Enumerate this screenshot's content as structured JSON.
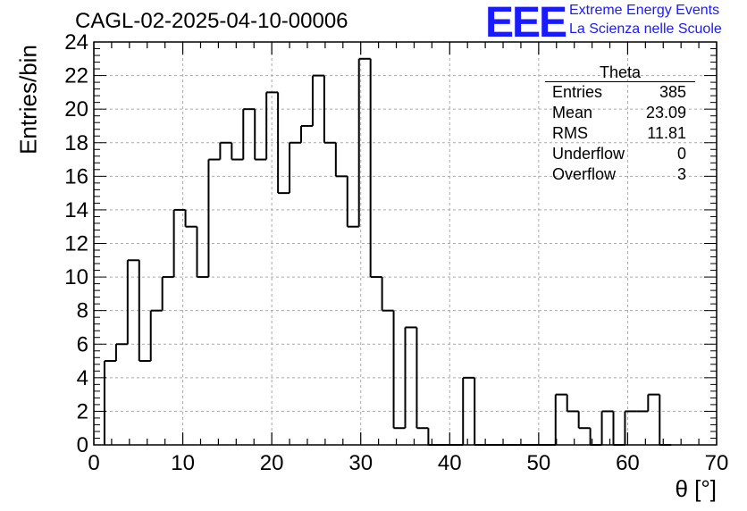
{
  "title": "CAGL-02-2025-04-10-00006",
  "logo": {
    "mark": "EEE",
    "line1": "Extreme Energy Events",
    "line2": "La Scienza nelle Scuole"
  },
  "stats_box": {
    "name": "Theta",
    "rows": [
      {
        "label": "Entries",
        "value": "385"
      },
      {
        "label": "Mean",
        "value": "23.09"
      },
      {
        "label": "RMS",
        "value": "11.81"
      },
      {
        "label": "Underflow",
        "value": "0"
      },
      {
        "label": "Overflow",
        "value": "3"
      }
    ]
  },
  "chart_data": {
    "type": "bar",
    "histogram": true,
    "title": "CAGL-02-2025-04-10-00006",
    "xlabel": "θ [°]",
    "ylabel": "Entries/bin",
    "xlim": [
      0,
      70
    ],
    "ylim": [
      0,
      24
    ],
    "grid": true,
    "bin_width": 1.3,
    "bin_start": 1.2,
    "xticks": [
      0,
      10,
      20,
      30,
      40,
      50,
      60,
      70
    ],
    "yticks": [
      0,
      2,
      4,
      6,
      8,
      10,
      12,
      14,
      16,
      18,
      20,
      22,
      24
    ],
    "values": [
      5,
      6,
      11,
      5,
      8,
      10,
      14,
      13,
      10,
      17,
      18,
      17,
      20,
      17,
      21,
      15,
      18,
      19,
      22,
      18,
      16,
      13,
      23,
      10,
      8,
      1,
      7,
      1,
      0,
      0,
      0,
      4,
      0,
      0,
      0,
      0,
      0,
      0,
      0,
      3,
      2,
      1,
      0,
      2,
      0,
      2,
      2,
      3,
      0
    ]
  }
}
